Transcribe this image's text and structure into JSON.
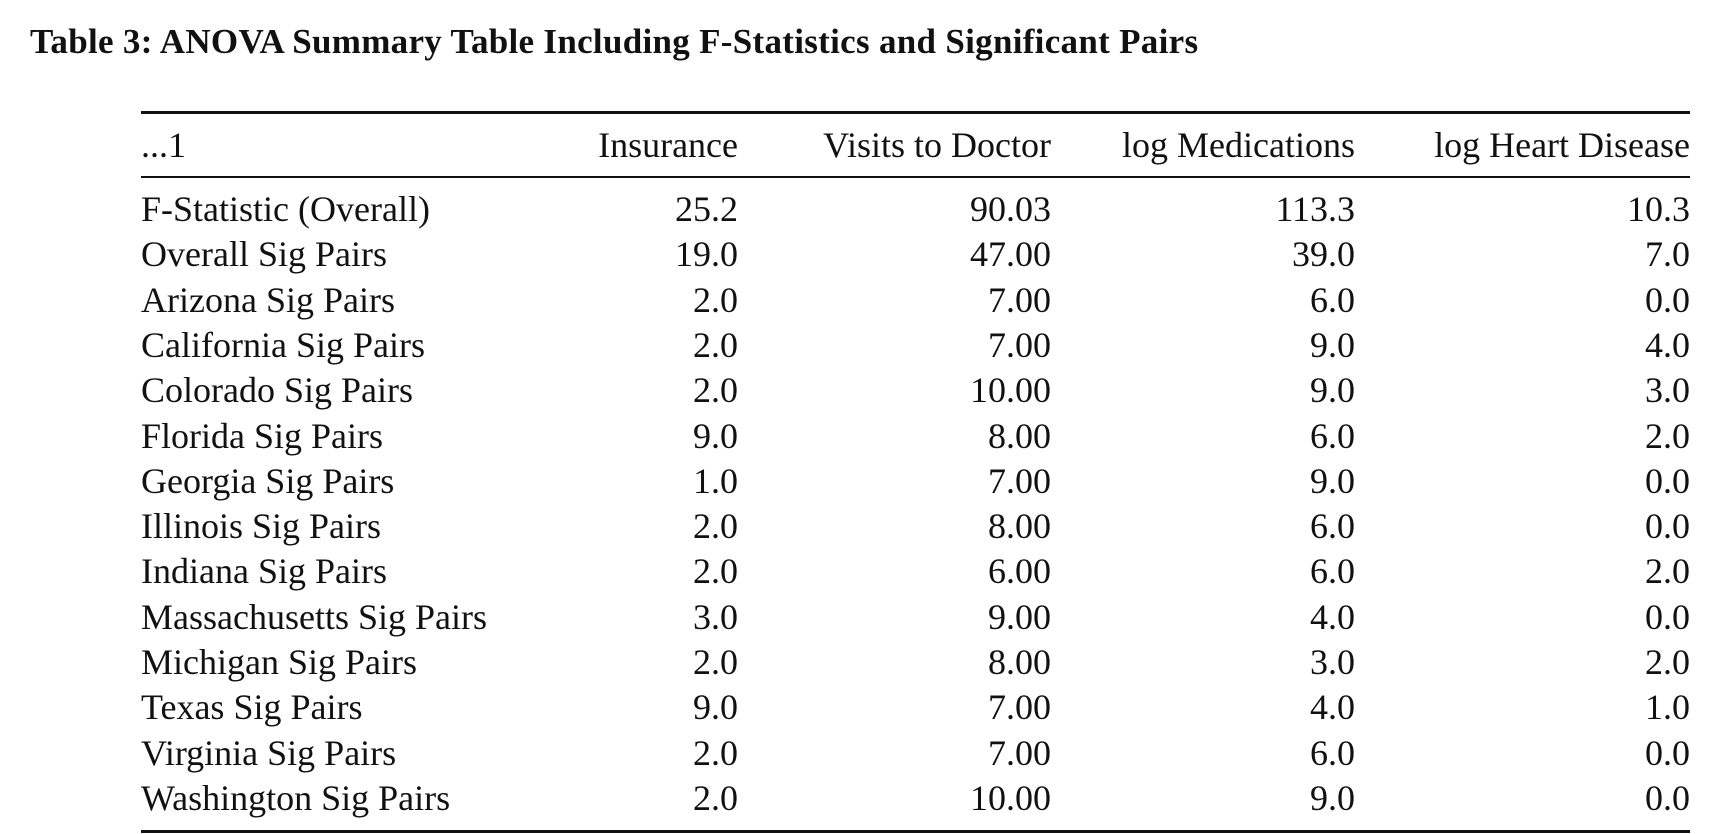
{
  "title": "Table 3: ANOVA Summary Table Including F-Statistics and Significant Pairs",
  "table": {
    "header": [
      "...1",
      "Insurance",
      "Visits to Doctor",
      "log Medications",
      "log Heart Disease"
    ],
    "rows": [
      [
        "F-Statistic (Overall)",
        "25.2",
        "90.03",
        "113.3",
        "10.3"
      ],
      [
        "Overall Sig Pairs",
        "19.0",
        "47.00",
        "39.0",
        "7.0"
      ],
      [
        "Arizona Sig Pairs",
        "2.0",
        "7.00",
        "6.0",
        "0.0"
      ],
      [
        "California Sig Pairs",
        "2.0",
        "7.00",
        "9.0",
        "4.0"
      ],
      [
        "Colorado Sig Pairs",
        "2.0",
        "10.00",
        "9.0",
        "3.0"
      ],
      [
        "Florida Sig Pairs",
        "9.0",
        "8.00",
        "6.0",
        "2.0"
      ],
      [
        "Georgia Sig Pairs",
        "1.0",
        "7.00",
        "9.0",
        "0.0"
      ],
      [
        "Illinois Sig Pairs",
        "2.0",
        "8.00",
        "6.0",
        "0.0"
      ],
      [
        "Indiana Sig Pairs",
        "2.0",
        "6.00",
        "6.0",
        "2.0"
      ],
      [
        "Massachusetts Sig Pairs",
        "3.0",
        "9.00",
        "4.0",
        "0.0"
      ],
      [
        "Michigan Sig Pairs",
        "2.0",
        "8.00",
        "3.0",
        "2.0"
      ],
      [
        "Texas Sig Pairs",
        "9.0",
        "7.00",
        "4.0",
        "1.0"
      ],
      [
        "Virginia Sig Pairs",
        "2.0",
        "7.00",
        "6.0",
        "0.0"
      ],
      [
        "Washington Sig Pairs",
        "2.0",
        "10.00",
        "9.0",
        "0.0"
      ]
    ]
  }
}
